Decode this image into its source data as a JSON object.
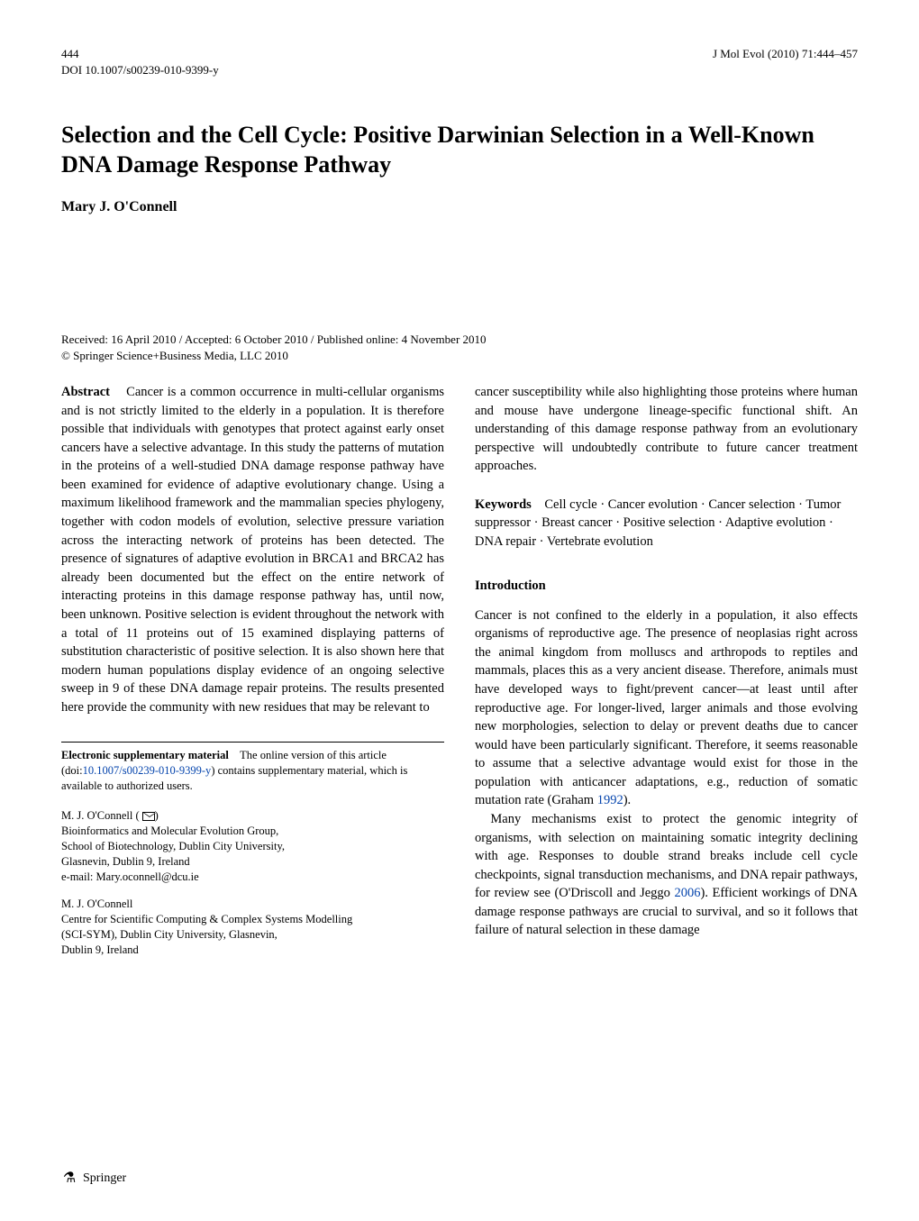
{
  "header": {
    "journal_ref": "J Mol Evol (2010) 71:444–457",
    "page_number": "444",
    "doi": "DOI 10.1007/s00239-010-9399-y"
  },
  "title": "Selection and the Cell Cycle: Positive Darwinian Selection in a Well-Known DNA Damage Response Pathway",
  "author": "Mary J. O'Connell",
  "dates": "Received: 16 April 2010 / Accepted: 6 October 2010 / Published online: 4 November 2010",
  "copyright": "© Springer Science+Business Media, LLC 2010",
  "abstract": {
    "label": "Abstract",
    "text": "Cancer is a common occurrence in multi-cellular organisms and is not strictly limited to the elderly in a population. It is therefore possible that individuals with genotypes that protect against early onset cancers have a selective advantage. In this study the patterns of mutation in the proteins of a well-studied DNA damage response pathway have been examined for evidence of adaptive evolutionary change. Using a maximum likelihood framework and the mammalian species phylogeny, together with codon models of evolution, selective pressure variation across the interacting network of proteins has been detected. The presence of signatures of adaptive evolution in BRCA1 and BRCA2 has already been documented but the effect on the entire network of interacting proteins in this damage response pathway has, until now, been unknown. Positive selection is evident throughout the network with a total of 11 proteins out of 15 examined displaying patterns of substitution characteristic of positive selection. It is also shown here that modern human populations display evidence of an ongoing selective sweep in 9 of these DNA damage repair proteins. The results presented here provide the community with new residues that may be relevant to"
  },
  "abstract_cont": "cancer susceptibility while also highlighting those proteins where human and mouse have undergone lineage-specific functional shift. An understanding of this damage response pathway from an evolutionary perspective will undoubtedly contribute to future cancer treatment approaches.",
  "keywords": {
    "label": "Keywords",
    "text": "Cell cycle · Cancer evolution · Cancer selection · Tumor suppressor · Breast cancer · Positive selection · Adaptive evolution · DNA repair · Vertebrate evolution"
  },
  "intro": {
    "heading": "Introduction",
    "p1": "Cancer is not confined to the elderly in a population, it also effects organisms of reproductive age. The presence of neoplasias right across the animal kingdom from molluscs and arthropods to reptiles and mammals, places this as a very ancient disease. Therefore, animals must have developed ways to fight/prevent cancer—at least until after reproductive age. For longer-lived, larger animals and those evolving new morphologies, selection to delay or prevent deaths due to cancer would have been particularly significant. Therefore, it seems reasonable to assume that a selective advantage would exist for those in the population with anticancer adaptations, e.g., reduction of somatic mutation rate (Graham ",
    "cite1": "1992",
    "p1_end": ").",
    "p2": "Many mechanisms exist to protect the genomic integrity of organisms, with selection on maintaining somatic integrity declining with age. Responses to double strand breaks include cell cycle checkpoints, signal transduction mechanisms, and DNA repair pathways, for review see (O'Driscoll and Jeggo ",
    "cite2": "2006",
    "p2_end": "). Efficient workings of DNA damage response pathways are crucial to survival, and so it follows that failure of natural selection in these damage"
  },
  "supp": {
    "label": "Electronic supplementary material",
    "text_before": "The online version of this article (doi:",
    "doi_link": "10.1007/s00239-010-9399-y",
    "text_after": ") contains supplementary material, which is available to authorized users."
  },
  "affil1": {
    "name": "M. J. O'Connell (",
    "close": ")",
    "l1": "Bioinformatics and Molecular Evolution Group,",
    "l2": "School of Biotechnology, Dublin City University,",
    "l3": "Glasnevin, Dublin 9, Ireland",
    "l4": "e-mail: Mary.oconnell@dcu.ie"
  },
  "affil2": {
    "name": "M. J. O'Connell",
    "l1": "Centre for Scientific Computing & Complex Systems Modelling",
    "l2": "(SCI-SYM), Dublin City University, Glasnevin,",
    "l3": "Dublin 9, Ireland"
  },
  "footer": {
    "springer": "Springer"
  }
}
